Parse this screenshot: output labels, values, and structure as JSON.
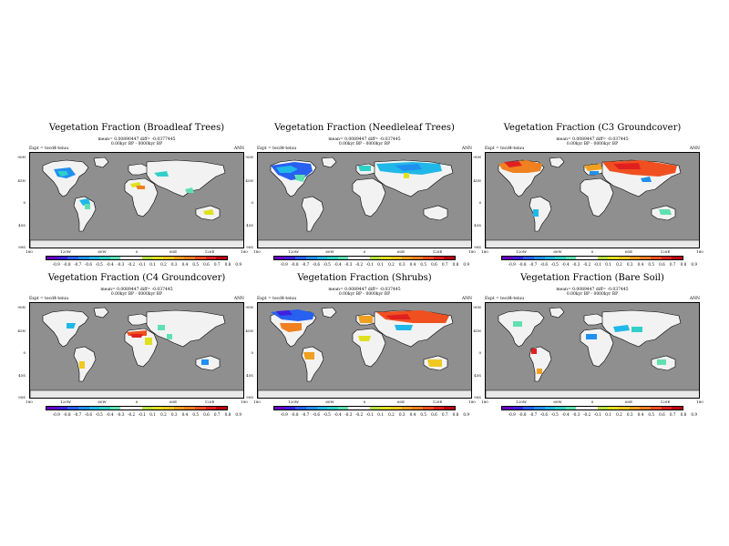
{
  "common": {
    "lat_labels": [
      "90N",
      "45N",
      "0",
      "45S",
      "90S"
    ],
    "lon_labels": [
      "180",
      "120W",
      "60W",
      "0",
      "60E",
      "120E",
      "180"
    ],
    "ann_label": "ANN",
    "colorbar": {
      "colors": [
        "#6a00c8",
        "#4020e0",
        "#2860f0",
        "#2090f0",
        "#20b8e8",
        "#30d0c8",
        "#60e0b0",
        "#f4f4f4",
        "#f4f4f4",
        "#b8e040",
        "#e0e020",
        "#f0c820",
        "#f0a020",
        "#f08020",
        "#f05020",
        "#e02020",
        "#c00010"
      ],
      "labels": [
        "-0.9",
        "-0.8",
        "-0.7",
        "-0.6",
        "-0.5",
        "-0.4",
        "-0.3",
        "-0.2",
        "-0.1",
        "0.1",
        "0.2",
        "0.3",
        "0.4",
        "0.5",
        "0.6",
        "0.7",
        "0.8",
        "0.9"
      ]
    }
  },
  "panels": [
    {
      "title": "Vegetation Fraction (Broadleaf Trees)",
      "stats": "mean= 0.00890447 diff= -0.0377445",
      "period": "0.00kyr BP - 0000kyr BP",
      "expt": "Expt = tecd4-teiuu",
      "anomaly": "broadleaf"
    },
    {
      "title": "Vegetation Fraction (Needleleaf Trees)",
      "stats": "mean= 0.0089447 diff= -0.037445",
      "period": "0.00kyr BP - 0000kyr BP",
      "expt": "Expt = tecd4-teiuu",
      "anomaly": "needleleaf"
    },
    {
      "title": "Vegetation Fraction (C3 Groundcover)",
      "stats": "mean= 0.0089447 diff= -0.037445",
      "period": "0.00kyr BP - 0000kyr BP",
      "expt": "Expt = tecd4-teiuu",
      "anomaly": "c3"
    },
    {
      "title": "Vegetation Fraction (C4 Groundcover)",
      "stats": "mean= 0.0089447 diff= -0.037445",
      "period": "0.00kyr BP - 0000kyr BP",
      "expt": "Expt = tecd4-teiuu",
      "anomaly": "c4"
    },
    {
      "title": "Vegetation Fraction (Shrubs)",
      "stats": "mean= 0.0089447 diff= -0.037445",
      "period": "0.00kyr BP - 0000kyr BP",
      "expt": "Expt = tecd4-teiuu",
      "anomaly": "shrubs"
    },
    {
      "title": "Vegetation Fraction (Bare Soil)",
      "stats": "mean= 0.0089447 diff= -0.037445",
      "period": "0.00kyr BP - 0000kyr BP",
      "expt": "Expt = tecd4-teiuu",
      "anomaly": "baresoil"
    }
  ]
}
